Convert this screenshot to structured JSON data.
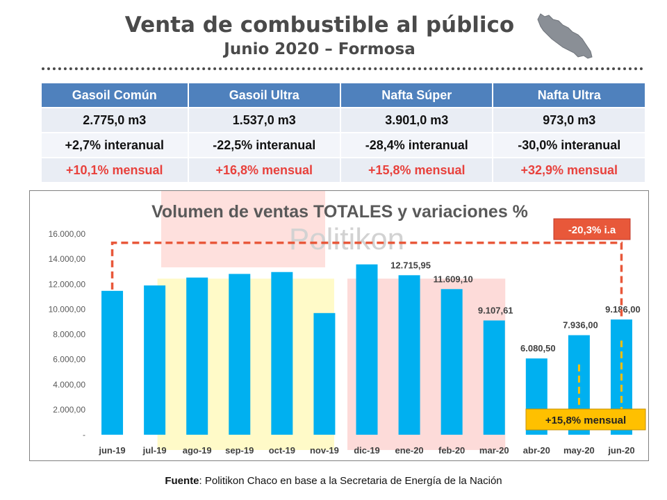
{
  "header": {
    "title": "Venta de combustible al público",
    "subtitle": "Junio 2020 – Formosa"
  },
  "summary": {
    "headers": [
      "Gasoil Común",
      "Gasoil Ultra",
      "Nafta Súper",
      "Nafta Ultra"
    ],
    "volumes": [
      "2.775,0 m3",
      "1.537,0 m3",
      "3.901,0 m3",
      "973,0 m3"
    ],
    "interanual": [
      "+2,7% interanual",
      "-22,5% interanual",
      "-28,4% interanual",
      "-30,0% interanual"
    ],
    "mensual": [
      "+10,1% mensual",
      "+16,8% mensual",
      "+15,8% mensual",
      "+32,9% mensual"
    ]
  },
  "chart_data": {
    "type": "bar",
    "title": "Volumen de ventas TOTALES y variaciones %",
    "watermark": "Politikon",
    "categories": [
      "jun-19",
      "jul-19",
      "ago-19",
      "sep-19",
      "oct-19",
      "nov-19",
      "dic-19",
      "ene-20",
      "feb-20",
      "mar-20",
      "abr-20",
      "may-20",
      "jun-20"
    ],
    "values": [
      11470,
      11900,
      12530,
      12820,
      12970,
      9700,
      13580,
      12715.95,
      11609.1,
      9107.61,
      6080.5,
      7936.0,
      9186.0
    ],
    "data_labels": [
      "",
      "",
      "",
      "",
      "",
      "",
      "",
      "12.715,95",
      "11.609,10",
      "9.107,61",
      "6.080,50",
      "7.936,00",
      "9.186,00"
    ],
    "yticks": [
      "-",
      "2.000,00",
      "4.000,00",
      "6.000,00",
      "8.000,00",
      "10.000,00",
      "12.000,00",
      "14.000,00",
      "16.000,00"
    ],
    "ylim": [
      0,
      16000
    ],
    "bar_color": "#00b0f0",
    "annotations": {
      "interanual": "-20,3% i.a",
      "mensual": "+15,8% mensual"
    },
    "colors": {
      "interanual_box": "#e8583a",
      "mensual_box": "#ffc000",
      "highlight_yellow": "#fffac8",
      "highlight_red": "#fdd5d2"
    }
  },
  "footer": {
    "source_label": "Fuente",
    "source_text": ": Politikon Chaco en base a la Secretaria de Energía de la Nación"
  }
}
